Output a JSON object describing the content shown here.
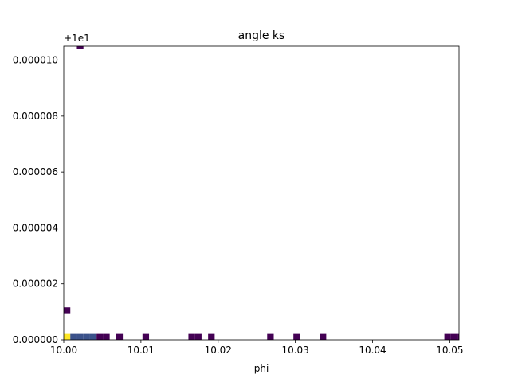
{
  "chart_data": {
    "type": "heatmap",
    "title": "angle ks",
    "xlabel": "phi",
    "ylabel": "",
    "xlim": [
      10.0,
      10.0512
    ],
    "ylim": [
      0.0,
      1.05e-05
    ],
    "y_offset_label": "+1e1",
    "x_ticks": [
      10.0,
      10.01,
      10.02,
      10.03,
      10.04,
      10.05
    ],
    "x_tick_labels": [
      "10.00",
      "10.01",
      "10.02",
      "10.03",
      "10.04",
      "10.05"
    ],
    "y_ticks": [
      0.0,
      2e-06,
      4e-06,
      6e-06,
      8e-06,
      1e-05
    ],
    "y_tick_labels": [
      "0.000000",
      "0.000002",
      "0.000004",
      "0.000006",
      "0.000008",
      "0.000010"
    ],
    "bin_width_x": 0.00085,
    "bin_height_y": 2.1e-07,
    "colormap": [
      "#440154",
      "#3b528b",
      "#21918c",
      "#5ec962",
      "#fde725"
    ],
    "cells": [
      {
        "x": 10.0,
        "y": 0.0,
        "level": 1.0
      },
      {
        "x": 10.00085,
        "y": 0.0,
        "level": 0.25
      },
      {
        "x": 10.0017,
        "y": 0.0,
        "level": 0.25
      },
      {
        "x": 10.00255,
        "y": 0.0,
        "level": 0.25
      },
      {
        "x": 10.0034,
        "y": 0.0,
        "level": 0.25
      },
      {
        "x": 10.00425,
        "y": 0.0,
        "level": 0.0
      },
      {
        "x": 10.0051,
        "y": 0.0,
        "level": 0.0
      },
      {
        "x": 10.0068,
        "y": 0.0,
        "level": 0.0
      },
      {
        "x": 10.0102,
        "y": 0.0,
        "level": 0.0
      },
      {
        "x": 10.01615,
        "y": 0.0,
        "level": 0.0
      },
      {
        "x": 10.017,
        "y": 0.0,
        "level": 0.0
      },
      {
        "x": 10.0187,
        "y": 0.0,
        "level": 0.0
      },
      {
        "x": 10.02635,
        "y": 0.0,
        "level": 0.0
      },
      {
        "x": 10.02975,
        "y": 0.0,
        "level": 0.0
      },
      {
        "x": 10.03315,
        "y": 0.0,
        "level": 0.0
      },
      {
        "x": 10.0493,
        "y": 0.0,
        "level": 0.0
      },
      {
        "x": 10.05015,
        "y": 0.0,
        "level": 0.0
      },
      {
        "x": 10.051,
        "y": 0.0,
        "level": 0.0
      },
      {
        "x": 10.0,
        "y": 9.5e-07,
        "level": 0.0
      },
      {
        "x": 10.0017,
        "y": 1.04e-05,
        "level": 0.0
      }
    ]
  }
}
